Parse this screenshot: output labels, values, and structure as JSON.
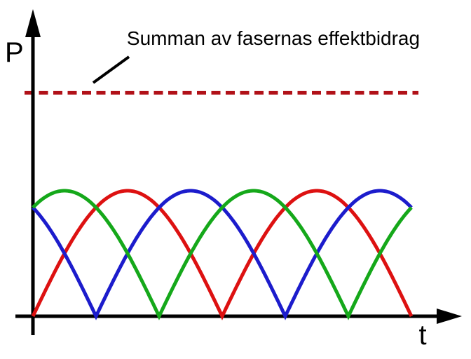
{
  "figure": {
    "background_color": "#ffffff",
    "axis_color": "#000000",
    "text_color": "#000000"
  },
  "labels": {
    "y_axis": "P",
    "x_axis": "t",
    "annotation": "Summan av fasernas effektbidrag"
  },
  "chart_data": {
    "type": "line",
    "title": "Summan av fasernas effektbidrag",
    "xlabel": "t",
    "ylabel": "P",
    "axes": {
      "x_ticks": [],
      "y_ticks": [],
      "grid": false,
      "note": "schematic sketch, no numeric scale"
    },
    "legend": "none",
    "x_range_arches": [
      0,
      2.0
    ],
    "series": [
      {
        "name": "phase-1-red",
        "color": "#dd1111",
        "shape": "rectified-sine-arch",
        "peak_value": 1.0,
        "phase_offset_fraction": 0,
        "zeros_t": [
          0.0,
          1.0,
          2.0
        ],
        "peaks_t": [
          0.5,
          1.5
        ]
      },
      {
        "name": "phase-2-blue",
        "color": "#1c1ccc",
        "shape": "rectified-sine-arch",
        "peak_value": 1.0,
        "phase_offset_fraction": 0.3333,
        "zeros_t": [
          0.3333,
          1.3333
        ],
        "peaks_t": [
          0.8333,
          1.8333
        ]
      },
      {
        "name": "phase-3-green",
        "color": "#15a81a",
        "shape": "rectified-sine-arch",
        "peak_value": 1.0,
        "phase_offset_fraction": 0.6667,
        "zeros_t": [
          0.6667,
          1.6667
        ],
        "peaks_t": [
          0.1667,
          1.1667
        ]
      }
    ],
    "sum_line": {
      "label": "Summan av fasernas effektbidrag",
      "style": "dashed",
      "color": "#b11118",
      "level_relative_to_phase_peak": 1.78
    }
  }
}
